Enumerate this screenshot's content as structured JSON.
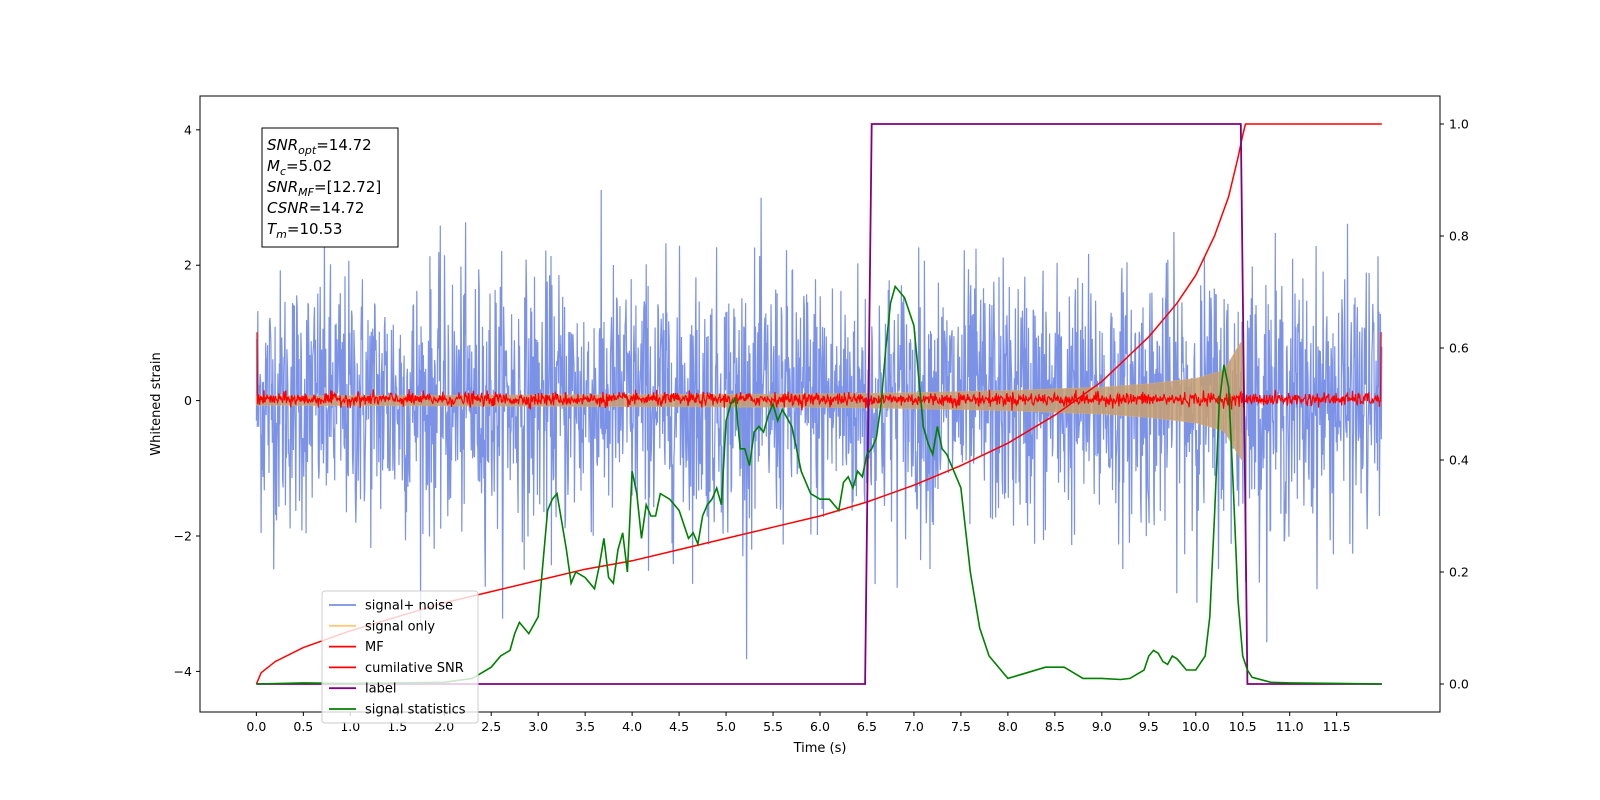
{
  "chart_data": {
    "type": "line",
    "xlabel": "Time (s)",
    "ylabel": "Whitened strain",
    "xlim": [
      -0.6,
      12.6
    ],
    "ylim": [
      -4.6,
      4.5
    ],
    "y2lim": [
      -0.05,
      1.05
    ],
    "xticks": [
      "0.0",
      "0.5",
      "1.0",
      "1.5",
      "2.0",
      "2.5",
      "3.0",
      "3.5",
      "4.0",
      "4.5",
      "5.0",
      "5.5",
      "6.0",
      "6.5",
      "7.0",
      "7.5",
      "8.0",
      "8.5",
      "9.0",
      "9.5",
      "10.0",
      "10.5",
      "11.0",
      "11.5"
    ],
    "yticks": [
      "-4",
      "-2",
      "0",
      "2",
      "4"
    ],
    "y2ticks": [
      "0.0",
      "0.2",
      "0.4",
      "0.6",
      "0.8",
      "1.0"
    ],
    "annotation": {
      "lines": [
        {
          "base": "SNR",
          "sub": "opt",
          "value": "=14.72"
        },
        {
          "base": "M",
          "sub": "c",
          "value": "=5.02"
        },
        {
          "base": "SNR",
          "sub": "MF",
          "value": "=[12.72]"
        },
        {
          "base": "CSNR",
          "sub": "",
          "value": "=14.72"
        },
        {
          "base": "T",
          "sub": "m",
          "value": "=10.53"
        }
      ]
    },
    "legend": {
      "placement": "lower-left",
      "entries": [
        {
          "label": "signal+ noise",
          "color": "#7890e6"
        },
        {
          "label": "signal only",
          "color": "#ffc87a"
        },
        {
          "label": "MF",
          "color": "#ff0000"
        },
        {
          "label": "cumilative SNR",
          "color": "#ff0000"
        },
        {
          "label": "label",
          "color": "#800080"
        },
        {
          "label": "signal statistics",
          "color": "#008000"
        }
      ]
    },
    "series": [
      {
        "name": "signal+ noise",
        "axis": "left",
        "color": "#7890e6",
        "description_values": {
          "t_start": 0.0,
          "t_end": 11.98,
          "typical_range": [
            -2.3,
            2.3
          ],
          "max": 4.1,
          "min": -4.15
        }
      },
      {
        "name": "signal only",
        "axis": "left",
        "color": "#ffc87a",
        "envelope": {
          "t": [
            0,
            2,
            4,
            6,
            7,
            8,
            9,
            9.5,
            10,
            10.3,
            10.45,
            10.5
          ],
          "amp": [
            0.07,
            0.08,
            0.09,
            0.1,
            0.12,
            0.15,
            0.2,
            0.25,
            0.33,
            0.45,
            0.8,
            0.9
          ]
        }
      },
      {
        "name": "MF",
        "axis": "left",
        "color": "#ff0000",
        "description_values": {
          "t_start": 0.0,
          "t_end": 11.98,
          "typical_range": [
            -0.1,
            0.15
          ],
          "edge_value": 1.0
        }
      },
      {
        "name": "cumilative SNR",
        "axis": "right",
        "color": "#ff0000",
        "x": [
          0.0,
          0.05,
          0.2,
          0.5,
          1.0,
          1.5,
          2.0,
          2.5,
          3.0,
          3.5,
          4.0,
          4.5,
          5.0,
          5.5,
          6.0,
          6.5,
          7.0,
          7.5,
          8.0,
          8.5,
          9.0,
          9.5,
          9.8,
          10.0,
          10.2,
          10.35,
          10.45,
          10.5,
          10.53,
          11.98
        ],
        "values": [
          0.0,
          0.02,
          0.04,
          0.065,
          0.095,
          0.12,
          0.145,
          0.165,
          0.185,
          0.205,
          0.22,
          0.24,
          0.26,
          0.28,
          0.3,
          0.325,
          0.355,
          0.39,
          0.43,
          0.48,
          0.54,
          0.62,
          0.68,
          0.73,
          0.8,
          0.87,
          0.94,
          0.98,
          1.0,
          1.0
        ]
      },
      {
        "name": "label",
        "axis": "right",
        "color": "#800080",
        "x": [
          0.0,
          6.48,
          6.55,
          10.48,
          10.55,
          11.98
        ],
        "values": [
          0.0,
          0.0,
          1.0,
          1.0,
          0.0,
          0.0
        ]
      },
      {
        "name": "signal statistics",
        "axis": "right",
        "color": "#008000",
        "x": [
          0.0,
          0.5,
          1.0,
          1.5,
          2.0,
          2.3,
          2.5,
          2.6,
          2.7,
          2.75,
          2.8,
          2.9,
          3.0,
          3.1,
          3.15,
          3.2,
          3.3,
          3.35,
          3.4,
          3.5,
          3.6,
          3.65,
          3.7,
          3.75,
          3.8,
          3.85,
          3.9,
          3.95,
          4.0,
          4.05,
          4.1,
          4.15,
          4.2,
          4.25,
          4.3,
          4.4,
          4.5,
          4.6,
          4.65,
          4.7,
          4.75,
          4.8,
          4.85,
          4.9,
          4.95,
          5.0,
          5.05,
          5.1,
          5.15,
          5.2,
          5.25,
          5.3,
          5.35,
          5.4,
          5.45,
          5.5,
          5.55,
          5.6,
          5.7,
          5.8,
          5.9,
          6.0,
          6.1,
          6.2,
          6.25,
          6.3,
          6.35,
          6.4,
          6.45,
          6.5,
          6.55,
          6.6,
          6.65,
          6.7,
          6.75,
          6.8,
          6.9,
          7.0,
          7.05,
          7.1,
          7.15,
          7.2,
          7.25,
          7.3,
          7.35,
          7.4,
          7.5,
          7.6,
          7.7,
          7.8,
          8.0,
          8.2,
          8.4,
          8.6,
          8.8,
          9.0,
          9.2,
          9.3,
          9.4,
          9.45,
          9.5,
          9.55,
          9.6,
          9.65,
          9.7,
          9.75,
          9.8,
          9.9,
          10.0,
          10.1,
          10.15,
          10.2,
          10.25,
          10.3,
          10.35,
          10.4,
          10.45,
          10.5,
          10.55,
          10.6,
          10.8,
          11.0,
          11.5,
          11.98
        ],
        "values": [
          0.0,
          0.002,
          0.001,
          0.002,
          0.003,
          0.01,
          0.03,
          0.05,
          0.06,
          0.09,
          0.11,
          0.09,
          0.12,
          0.31,
          0.33,
          0.34,
          0.24,
          0.18,
          0.2,
          0.19,
          0.17,
          0.21,
          0.26,
          0.19,
          0.18,
          0.24,
          0.27,
          0.2,
          0.38,
          0.34,
          0.26,
          0.32,
          0.3,
          0.3,
          0.34,
          0.33,
          0.31,
          0.26,
          0.27,
          0.25,
          0.3,
          0.32,
          0.33,
          0.35,
          0.32,
          0.47,
          0.5,
          0.51,
          0.42,
          0.42,
          0.39,
          0.45,
          0.46,
          0.45,
          0.48,
          0.5,
          0.47,
          0.49,
          0.46,
          0.38,
          0.34,
          0.33,
          0.33,
          0.31,
          0.36,
          0.37,
          0.35,
          0.38,
          0.37,
          0.41,
          0.42,
          0.44,
          0.5,
          0.6,
          0.68,
          0.71,
          0.69,
          0.64,
          0.55,
          0.46,
          0.43,
          0.41,
          0.46,
          0.42,
          0.41,
          0.39,
          0.35,
          0.2,
          0.1,
          0.05,
          0.01,
          0.02,
          0.03,
          0.03,
          0.01,
          0.01,
          0.008,
          0.01,
          0.02,
          0.025,
          0.05,
          0.06,
          0.055,
          0.04,
          0.035,
          0.05,
          0.045,
          0.025,
          0.025,
          0.05,
          0.12,
          0.3,
          0.5,
          0.57,
          0.53,
          0.35,
          0.15,
          0.05,
          0.025,
          0.012,
          0.003,
          0.002,
          0.001,
          0.0
        ]
      }
    ]
  }
}
